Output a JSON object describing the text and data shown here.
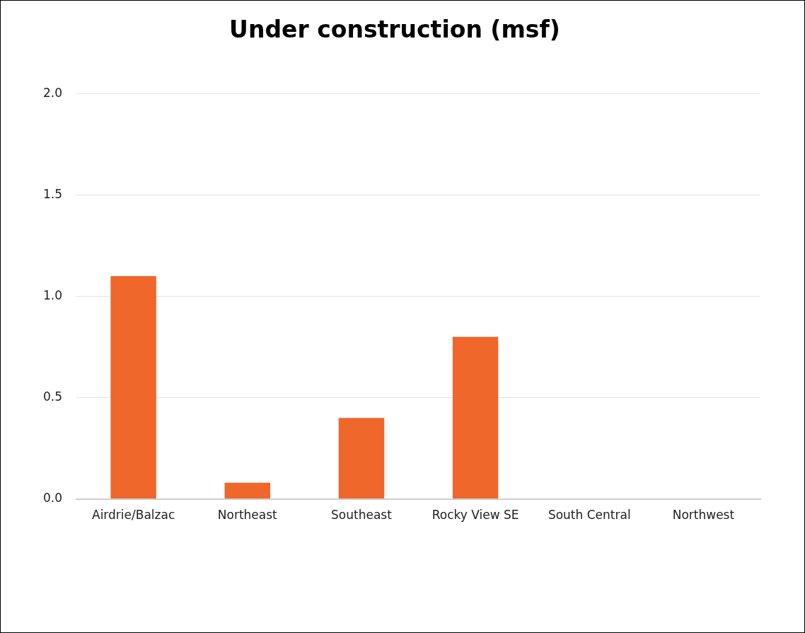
{
  "chart_data": {
    "type": "bar",
    "title": "Under construction (msf)",
    "categories": [
      "Airdrie/Balzac",
      "Northeast",
      "Southeast",
      "Rocky View SE",
      "South Central",
      "Northwest"
    ],
    "values": [
      1.1,
      0.08,
      0.4,
      0.8,
      0,
      0
    ],
    "color": "#f0672b",
    "ylim": [
      0,
      2
    ],
    "yticks": [
      {
        "value": 0,
        "label": "0.0"
      },
      {
        "value": 0.5,
        "label": "0.5"
      },
      {
        "value": 1,
        "label": "1.0"
      },
      {
        "value": 1.5,
        "label": "1.5"
      },
      {
        "value": 2,
        "label": "2.0"
      }
    ],
    "grid": "y",
    "legend": false
  }
}
